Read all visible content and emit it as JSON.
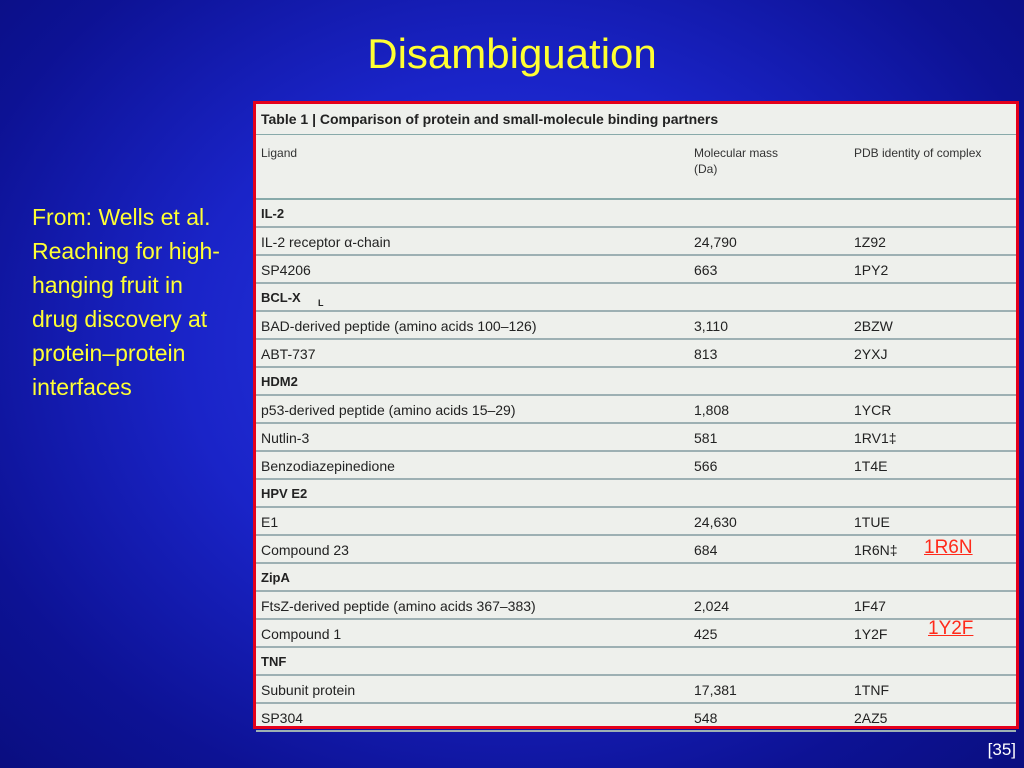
{
  "slide": {
    "title": "Disambiguation",
    "source_text": "From: Wells et al. Reaching for high-hanging fruit in drug discovery at protein–protein interfaces",
    "page_number": "[35]"
  },
  "table": {
    "title": "Table 1 | Comparison of protein and small-molecule binding partners",
    "headers": {
      "ligand": "Ligand",
      "mass_line1": "Molecular mass",
      "mass_line2": "(Da)",
      "pdb": "PDB identity of complex"
    },
    "rows": [
      {
        "group": "IL-2"
      },
      {
        "ligand": "IL-2 receptor α-chain",
        "mass": "24,790",
        "pdb": "1Z92"
      },
      {
        "ligand": "SP4206",
        "mass": "663",
        "pdb": "1PY2"
      },
      {
        "group": "BCL-X",
        "group_sub": "L"
      },
      {
        "ligand": "BAD-derived peptide (amino acids 100–126)",
        "mass": "3,110",
        "pdb": "2BZW"
      },
      {
        "ligand": "ABT-737",
        "mass": "813",
        "pdb": "2YXJ"
      },
      {
        "group": "HDM2"
      },
      {
        "ligand": "p53-derived peptide (amino acids 15–29)",
        "mass": "1,808",
        "pdb": "1YCR"
      },
      {
        "ligand": "Nutlin-3",
        "mass": "581",
        "pdb": "1RV1‡"
      },
      {
        "ligand": "Benzodiazepinedione",
        "mass": "566",
        "pdb": "1T4E"
      },
      {
        "group": "HPV E2"
      },
      {
        "ligand": "E1",
        "mass": "24,630",
        "pdb": "1TUE"
      },
      {
        "ligand": "Compound 23",
        "mass": "684",
        "pdb": "1R6N‡"
      },
      {
        "group": "ZipA"
      },
      {
        "ligand": "FtsZ-derived peptide (amino acids 367–383)",
        "mass": "2,024",
        "pdb": "1F47"
      },
      {
        "ligand": "Compound 1",
        "mass": "425",
        "pdb": "1Y2F"
      },
      {
        "group": "TNF"
      },
      {
        "ligand": "Subunit protein",
        "mass": "17,381",
        "pdb": "1TNF"
      },
      {
        "ligand": "SP304",
        "mass": "548",
        "pdb": "2AZ5"
      }
    ]
  },
  "callouts": {
    "link1": "1R6N",
    "link2": "1Y2F"
  }
}
